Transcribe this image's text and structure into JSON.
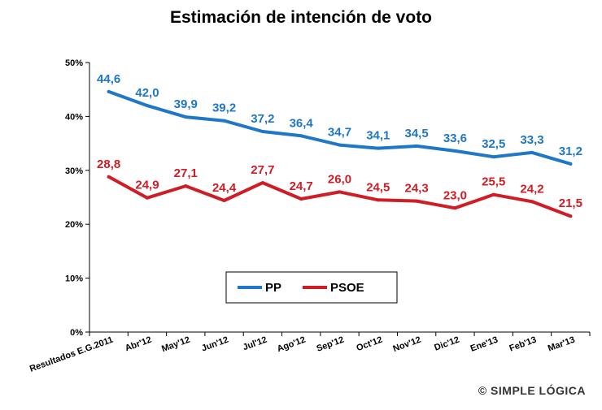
{
  "credit": "© SIMPLE LÓGICA",
  "chart_data": {
    "type": "line",
    "title": "Estimación de intención de voto",
    "xlabel": "",
    "ylabel": "",
    "ylim": [
      0,
      50
    ],
    "y_ticks": [
      "0%",
      "10%",
      "20%",
      "30%",
      "40%",
      "50%"
    ],
    "y_tick_values": [
      0,
      10,
      20,
      30,
      40,
      50
    ],
    "categories": [
      "Resultados E.G.2011",
      "Abr'12",
      "May'12",
      "Jun'12",
      "Jul'12",
      "Ago'12",
      "Sep'12",
      "Oct'12",
      "Nov'12",
      "Dic'12",
      "Ene'13",
      "Feb'13",
      "Mar'13"
    ],
    "series": [
      {
        "name": "PP",
        "color": "#1f77c8",
        "values": [
          44.6,
          42.0,
          39.9,
          39.2,
          37.2,
          36.4,
          34.7,
          34.1,
          34.5,
          33.6,
          32.5,
          33.3,
          31.2
        ],
        "labels": [
          "44,6",
          "42,0",
          "39,9",
          "39,2",
          "37,2",
          "36,4",
          "34,7",
          "34,1",
          "34,5",
          "33,6",
          "32,5",
          "33,3",
          "31,2"
        ]
      },
      {
        "name": "PSOE",
        "color": "#d01c24",
        "values": [
          28.8,
          24.9,
          27.1,
          24.4,
          27.7,
          24.7,
          26.0,
          24.5,
          24.3,
          23.0,
          25.5,
          24.2,
          21.5
        ],
        "labels": [
          "28,8",
          "24,9",
          "27,1",
          "24,4",
          "27,7",
          "24,7",
          "26,0",
          "24,5",
          "24,3",
          "23,0",
          "25,5",
          "24,2",
          "21,5"
        ]
      }
    ],
    "legend": {
      "position": "bottom-center",
      "entries": [
        "PP",
        "PSOE"
      ]
    }
  }
}
